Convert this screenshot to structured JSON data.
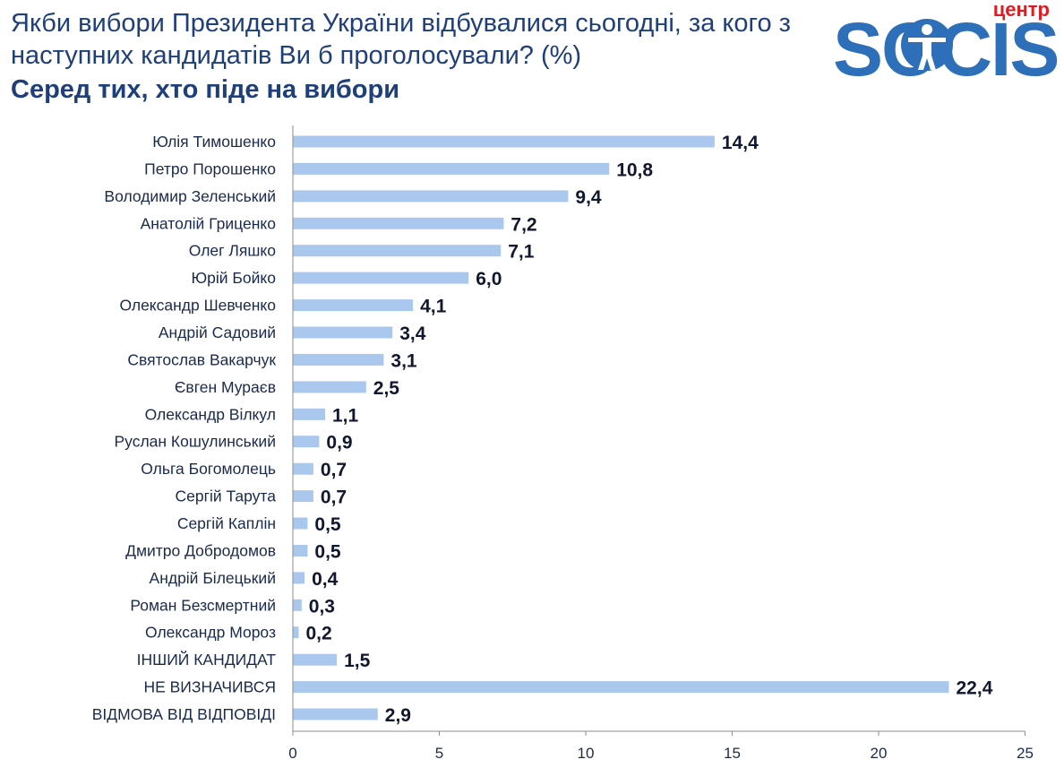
{
  "header": {
    "title": "Якби вибори Президента України відбувалися сьогодні, за кого з наступних кандидатів Ви б проголосували? (%)",
    "subtitle": "Серед тих, хто піде на вибори"
  },
  "logo": {
    "top_word": "центр",
    "brand": "SOCIS",
    "brand_color": "#2d6fb8",
    "accent_color": "#e11b22"
  },
  "chart_data": {
    "type": "bar",
    "orientation": "horizontal",
    "title": "Якби вибори Президента України відбувалися сьогодні, за кого з наступних кандидатів Ви б проголосували? (%)",
    "subtitle": "Серед тих, хто піде на вибори",
    "categories": [
      "Юлія Тимошенко",
      "Петро Порошенко",
      "Володимир Зеленський",
      "Анатолій Гриценко",
      "Олег Ляшко",
      "Юрій Бойко",
      "Олександр Шевченко",
      "Андрій Садовий",
      "Святослав Вакарчук",
      "Євген Мураєв",
      "Олександр Вілкул",
      "Руслан Кошулинський",
      "Ольга Богомолець",
      "Сергій Тарута",
      "Сергій Каплін",
      "Дмитро Добродомов",
      "Андрій Білецький",
      "Роман Безсмертний",
      "Олександр Мороз",
      "ІНШИЙ КАНДИДАТ",
      "НЕ ВИЗНАЧИВСЯ",
      "ВІДМОВА ВІД ВІДПОВІДІ"
    ],
    "values": [
      14.4,
      10.8,
      9.4,
      7.2,
      7.1,
      6.0,
      4.1,
      3.4,
      3.1,
      2.5,
      1.1,
      0.9,
      0.7,
      0.7,
      0.5,
      0.5,
      0.4,
      0.3,
      0.2,
      1.5,
      22.4,
      2.9
    ],
    "value_labels": [
      "14,4",
      "10,8",
      "9,4",
      "7,2",
      "7,1",
      "6,0",
      "4,1",
      "3,4",
      "3,1",
      "2,5",
      "1,1",
      "0,9",
      "0,7",
      "0,7",
      "0,5",
      "0,5",
      "0,4",
      "0,3",
      "0,2",
      "1,5",
      "22,4",
      "2,9"
    ],
    "xlim": [
      0,
      25
    ],
    "xticks": [
      "0",
      "5",
      "10",
      "15",
      "20",
      "25"
    ],
    "xtick_values": [
      0,
      5,
      10,
      15,
      20,
      25
    ],
    "xlabel": "",
    "ylabel": "",
    "grid": false,
    "bar_color": "#aac8ee"
  }
}
